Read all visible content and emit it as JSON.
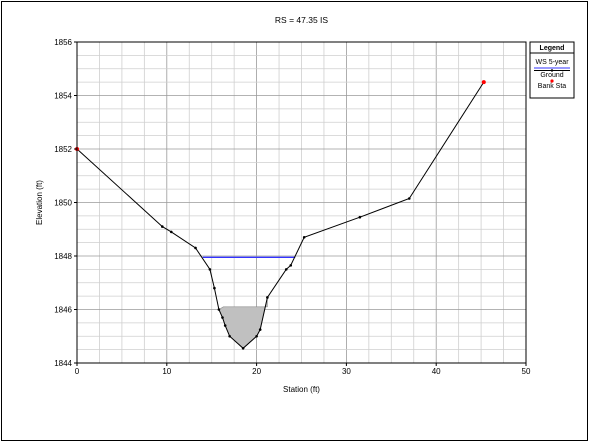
{
  "chart_data": {
    "type": "line",
    "title": "RS = 47.35    IS",
    "xlabel": "Station (ft)",
    "ylabel": "Elevation (ft)",
    "xlim": [
      0,
      50
    ],
    "ylim": [
      1844,
      1856
    ],
    "xticks": [
      0,
      10,
      20,
      30,
      40,
      50
    ],
    "yticks": [
      1844,
      1846,
      1848,
      1850,
      1852,
      1854,
      1856
    ],
    "grid": true,
    "legend_position": "top-right",
    "legend": {
      "title": "Legend",
      "items": [
        "WS 5-year",
        "Ground",
        "Bank Sta"
      ]
    },
    "series": [
      {
        "name": "Ground",
        "color": "#000000",
        "x": [
          0,
          9.5,
          10.5,
          13.2,
          14.8,
          15.3,
          15.8,
          16.2,
          16.5,
          17.0,
          18.5,
          20.0,
          20.4,
          21.2,
          23.3,
          23.8,
          25.3,
          31.5,
          37.0,
          45.3
        ],
        "y": [
          1852.0,
          1849.1,
          1848.9,
          1848.3,
          1847.5,
          1846.8,
          1846.0,
          1845.7,
          1845.4,
          1845.0,
          1844.55,
          1845.0,
          1845.25,
          1846.45,
          1847.5,
          1847.65,
          1848.7,
          1849.45,
          1850.15,
          1854.5
        ]
      },
      {
        "name": "WS 5-year",
        "color": "#3333ff",
        "elevation": 1847.95,
        "x_range": [
          14.0,
          24.3
        ]
      },
      {
        "name": "Bank Sta",
        "color": "#ff0000",
        "x": [
          0,
          45.3
        ],
        "y": [
          1852.0,
          1854.5
        ]
      }
    ],
    "shaded_water": {
      "color": "#c0c0c0",
      "surface_elevation": 1846.1,
      "x_range": [
        15.8,
        21.2
      ]
    }
  }
}
